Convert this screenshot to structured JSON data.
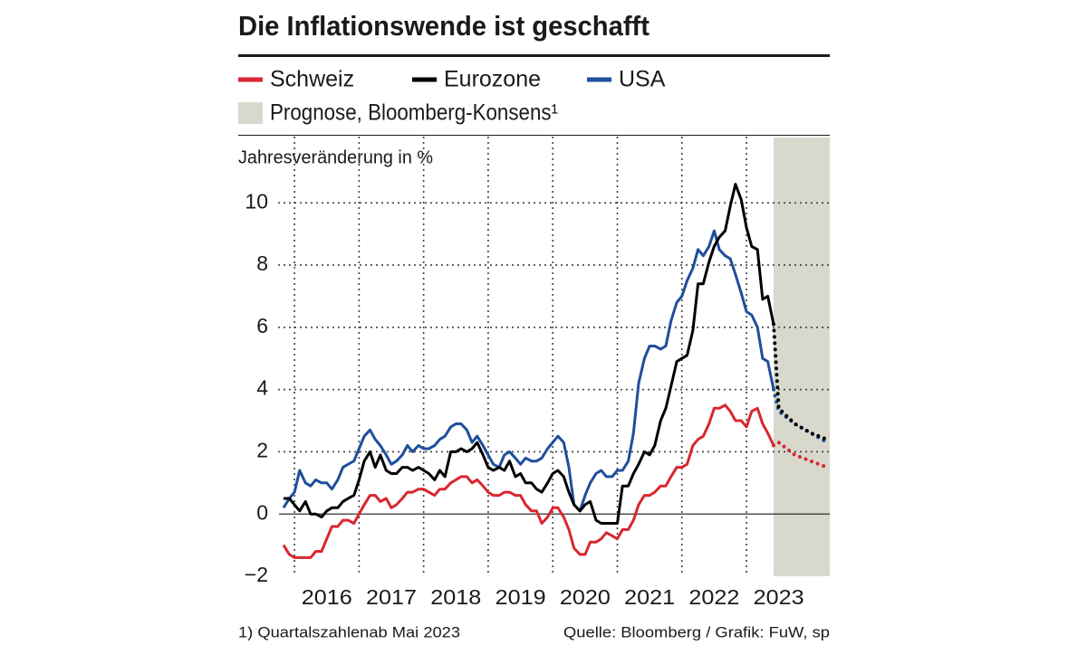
{
  "chart_data": {
    "type": "line",
    "title": "Die Inflationswende ist geschafft",
    "y_label": "Jahresveränderung in %",
    "forecast_label": "Prognose, Bloomberg-Konsens¹",
    "forecast_color": "#d9d8cd",
    "footnote": "1) Quartalszahlenab Mai 2023",
    "source": "Quelle: Bloomberg / Grafik: FuW, sp",
    "xlim": [
      2015.76,
      2024.29
    ],
    "xticks": [
      2016,
      2017,
      2018,
      2019,
      2020,
      2021,
      2022,
      2023
    ],
    "ylim": [
      -2,
      12.1
    ],
    "yticks": [
      {
        "value": -2,
        "label": "−2"
      },
      0,
      2,
      4,
      6,
      8,
      10
    ],
    "grid": true,
    "x": [
      2015.83,
      2015.92,
      2016,
      2016.08,
      2016.17,
      2016.25,
      2016.33,
      2016.42,
      2016.5,
      2016.58,
      2016.67,
      2016.75,
      2016.83,
      2016.92,
      2017,
      2017.08,
      2017.17,
      2017.25,
      2017.33,
      2017.42,
      2017.5,
      2017.58,
      2017.67,
      2017.75,
      2017.83,
      2017.92,
      2018,
      2018.08,
      2018.17,
      2018.25,
      2018.33,
      2018.42,
      2018.5,
      2018.58,
      2018.67,
      2018.75,
      2018.83,
      2018.92,
      2019,
      2019.08,
      2019.17,
      2019.25,
      2019.33,
      2019.42,
      2019.5,
      2019.58,
      2019.67,
      2019.75,
      2019.83,
      2019.92,
      2020,
      2020.08,
      2020.17,
      2020.25,
      2020.33,
      2020.42,
      2020.5,
      2020.58,
      2020.67,
      2020.75,
      2020.83,
      2020.92,
      2021,
      2021.08,
      2021.17,
      2021.25,
      2021.33,
      2021.42,
      2021.5,
      2021.58,
      2021.67,
      2021.75,
      2021.83,
      2021.92,
      2022,
      2022.08,
      2022.17,
      2022.25,
      2022.33,
      2022.42,
      2022.5,
      2022.58,
      2022.67,
      2022.75,
      2022.83,
      2022.92,
      2023,
      2023.08,
      2023.17,
      2023.25,
      2023.33,
      2023.42
    ],
    "forecast_x": [
      2023.42,
      2023.5,
      2023.75,
      2024,
      2024.25
    ],
    "series": [
      {
        "name": "Schweiz",
        "color": "#d9262f",
        "values": [
          -1.0,
          -1.3,
          -1.4,
          -1.4,
          -1.4,
          -1.4,
          -1.2,
          -1.2,
          -0.8,
          -0.4,
          -0.4,
          -0.2,
          -0.2,
          -0.3,
          0.0,
          0.3,
          0.6,
          0.6,
          0.4,
          0.5,
          0.2,
          0.3,
          0.5,
          0.7,
          0.7,
          0.8,
          0.8,
          0.7,
          0.6,
          0.8,
          0.8,
          1.0,
          1.1,
          1.2,
          1.2,
          1.0,
          1.1,
          0.9,
          0.7,
          0.6,
          0.6,
          0.7,
          0.7,
          0.6,
          0.6,
          0.3,
          0.1,
          0.1,
          -0.3,
          -0.1,
          0.2,
          0.2,
          -0.1,
          -0.5,
          -1.1,
          -1.3,
          -1.3,
          -0.9,
          -0.9,
          -0.8,
          -0.6,
          -0.7,
          -0.8,
          -0.5,
          -0.5,
          -0.2,
          0.3,
          0.6,
          0.6,
          0.7,
          0.9,
          0.9,
          1.2,
          1.5,
          1.5,
          1.6,
          2.2,
          2.4,
          2.5,
          2.9,
          3.4,
          3.4,
          3.5,
          3.3,
          3.0,
          3.0,
          2.8,
          3.3,
          3.4,
          2.9,
          2.6,
          2.2
        ],
        "forecast": [
          2.2,
          2.3,
          1.9,
          1.7,
          1.5
        ]
      },
      {
        "name": "Eurozone",
        "color": "#000000",
        "values": [
          0.5,
          0.5,
          0.3,
          0.1,
          0.4,
          0.0,
          0.0,
          -0.1,
          0.1,
          0.2,
          0.2,
          0.4,
          0.5,
          0.6,
          1.1,
          1.7,
          2.0,
          1.5,
          1.9,
          1.4,
          1.3,
          1.3,
          1.5,
          1.5,
          1.4,
          1.5,
          1.4,
          1.3,
          1.1,
          1.4,
          1.2,
          2.0,
          2.0,
          2.1,
          2.0,
          2.1,
          2.3,
          1.9,
          1.5,
          1.4,
          1.5,
          1.4,
          1.7,
          1.2,
          1.3,
          1.0,
          1.0,
          0.8,
          0.7,
          1.0,
          1.3,
          1.4,
          1.2,
          0.7,
          0.3,
          0.1,
          0.3,
          0.4,
          -0.2,
          -0.3,
          -0.3,
          -0.3,
          -0.3,
          0.9,
          0.9,
          1.3,
          1.6,
          2.0,
          1.9,
          2.2,
          3.0,
          3.4,
          4.1,
          4.9,
          5.0,
          5.1,
          5.9,
          7.4,
          7.4,
          8.1,
          8.6,
          8.9,
          9.1,
          9.9,
          10.6,
          10.1,
          9.2,
          8.6,
          8.5,
          6.9,
          7.0,
          6.1
        ],
        "forecast": [
          6.1,
          3.4,
          2.9,
          2.6,
          2.4
        ]
      },
      {
        "name": "USA",
        "color": "#1f4e9c",
        "values": [
          0.2,
          0.5,
          0.7,
          1.4,
          1.0,
          0.9,
          1.1,
          1.0,
          1.0,
          0.8,
          1.1,
          1.5,
          1.6,
          1.7,
          2.1,
          2.5,
          2.7,
          2.4,
          2.2,
          1.9,
          1.6,
          1.7,
          1.9,
          2.2,
          2.0,
          2.2,
          2.1,
          2.1,
          2.2,
          2.4,
          2.5,
          2.8,
          2.9,
          2.9,
          2.7,
          2.3,
          2.5,
          2.2,
          1.9,
          1.6,
          1.5,
          1.9,
          2.0,
          1.8,
          1.6,
          1.8,
          1.7,
          1.7,
          1.8,
          2.1,
          2.3,
          2.5,
          2.3,
          1.5,
          0.3,
          0.1,
          0.6,
          1.0,
          1.3,
          1.4,
          1.2,
          1.2,
          1.4,
          1.4,
          1.7,
          2.6,
          4.2,
          5.0,
          5.4,
          5.4,
          5.3,
          5.4,
          6.2,
          6.8,
          7.0,
          7.5,
          7.9,
          8.5,
          8.3,
          8.6,
          9.1,
          8.5,
          8.3,
          8.2,
          7.7,
          7.1,
          6.5,
          6.4,
          6.0,
          5.0,
          4.9,
          4.0
        ],
        "forecast": [
          4.0,
          3.3,
          2.9,
          2.6,
          2.3
        ]
      }
    ]
  }
}
